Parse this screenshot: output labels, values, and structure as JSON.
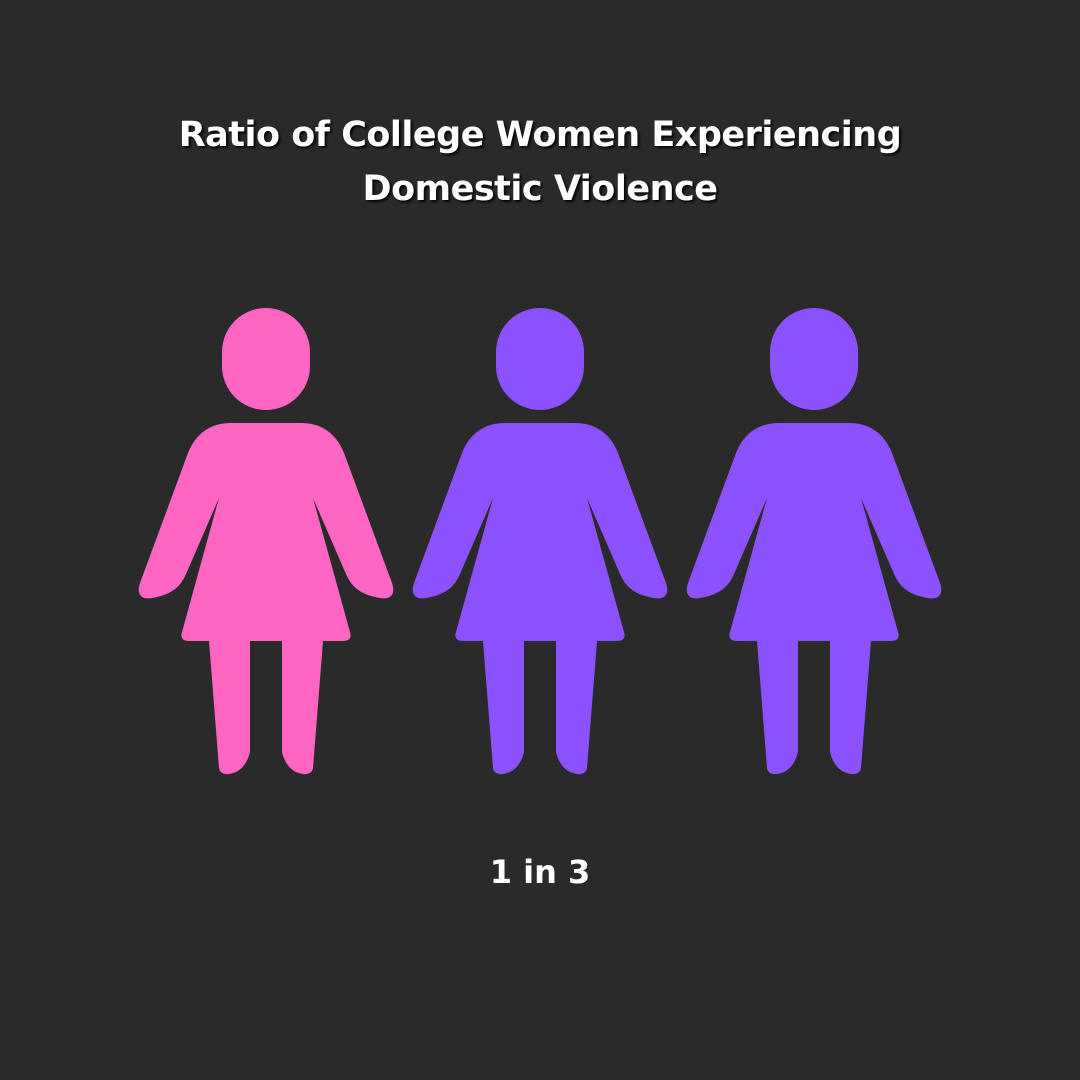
{
  "chart_data": {
    "type": "pictogram",
    "title": "Ratio of College Women Experiencing Domestic Violence",
    "ratio_label": "1 in 3",
    "highlighted_count": 1,
    "total_count": 3,
    "icon": "woman-icon",
    "colors": {
      "highlighted": "#ff66c4",
      "other": "#8c52ff",
      "background": "#2b2a2a",
      "text": "#ffffff"
    }
  }
}
